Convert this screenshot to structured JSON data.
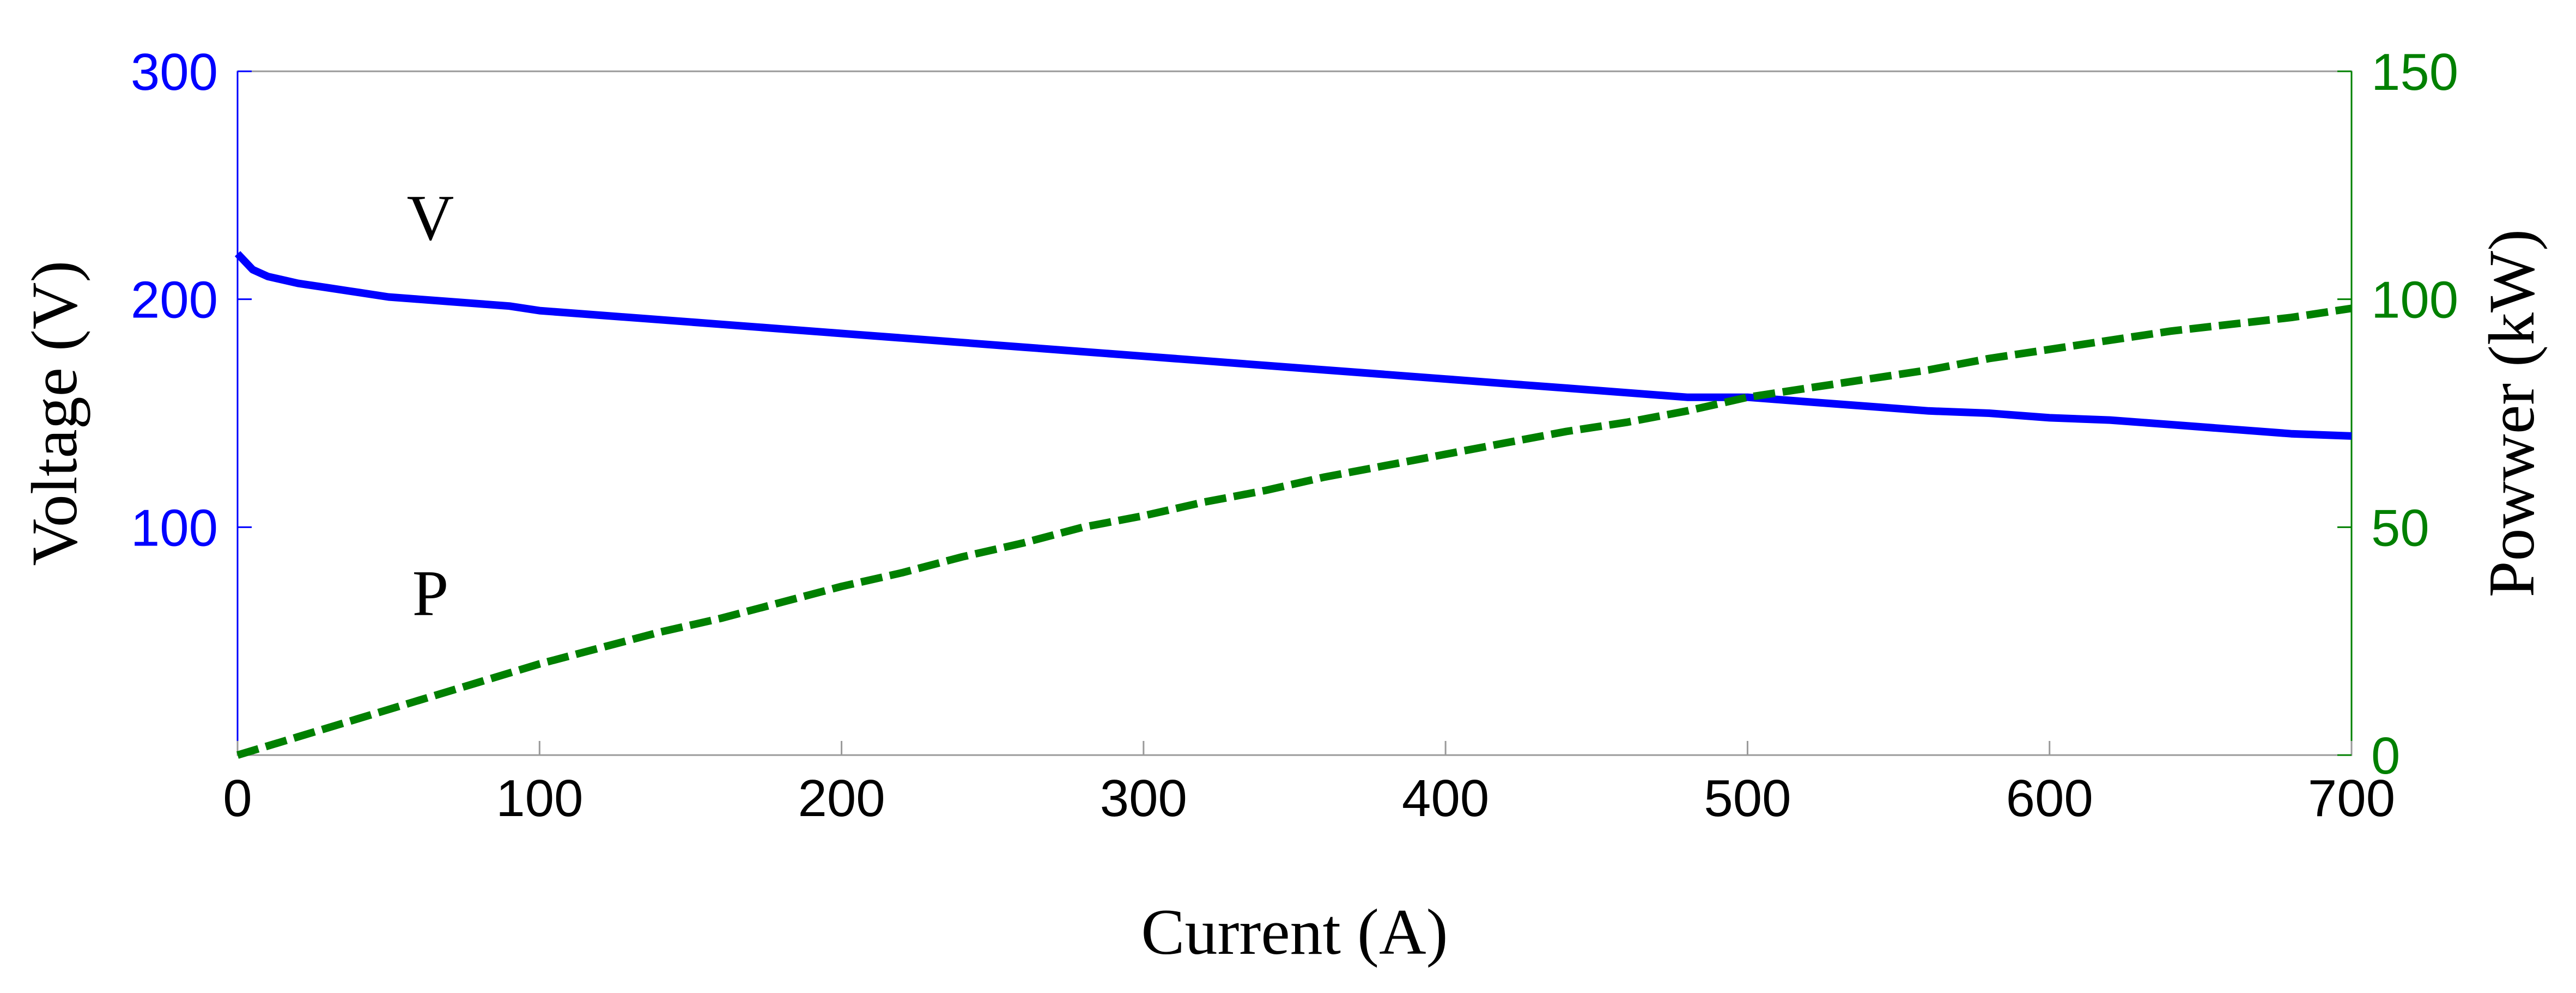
{
  "chart_data": {
    "type": "line",
    "xlabel": "Current (A)",
    "ylabel_left": "Voltage (V)",
    "ylabel_right": "Powwer (kW)",
    "xlim": [
      0,
      700
    ],
    "ylim_left": [
      0,
      300
    ],
    "ylim_right": [
      0,
      150
    ],
    "x_ticks": [
      "0",
      "100",
      "200",
      "300",
      "400",
      "500",
      "600",
      "700"
    ],
    "y_left_ticks": [
      "100",
      "200",
      "300"
    ],
    "y_right_ticks": [
      "0",
      "50",
      "100",
      "150"
    ],
    "grid": false,
    "colors": {
      "voltage": "#0000ff",
      "power": "#008000",
      "frame": "#9a9a9a"
    },
    "annotations": [
      {
        "text": "V",
        "series": "voltage"
      },
      {
        "text": "P",
        "series": "power"
      }
    ],
    "series": [
      {
        "axis": "left",
        "style": "solid",
        "x": [
          0,
          5,
          10,
          20,
          30,
          40,
          50,
          60,
          70,
          80,
          90,
          100,
          120,
          140,
          160,
          180,
          200,
          220,
          240,
          260,
          280,
          300,
          320,
          340,
          360,
          380,
          400,
          420,
          440,
          460,
          480,
          500,
          520,
          540,
          560,
          580,
          600,
          620,
          640,
          660,
          680,
          700
        ],
        "values": [
          220,
          213,
          210,
          207,
          205,
          203,
          201,
          200,
          199,
          198,
          197,
          195,
          193,
          191,
          189,
          187,
          185,
          183,
          181,
          179,
          177,
          175,
          173,
          171,
          169,
          167,
          165,
          163,
          161,
          159,
          157,
          157,
          155,
          153,
          151,
          150,
          148,
          147,
          145,
          143,
          141,
          140
        ]
      },
      {
        "axis": "right",
        "style": "dashed",
        "x": [
          0,
          20,
          40,
          60,
          80,
          100,
          120,
          140,
          160,
          180,
          200,
          220,
          240,
          260,
          280,
          300,
          320,
          340,
          360,
          380,
          400,
          420,
          440,
          460,
          480,
          500,
          520,
          540,
          560,
          580,
          600,
          620,
          640,
          660,
          680,
          700
        ],
        "values": [
          0,
          4,
          8,
          12,
          16,
          20,
          23.5,
          27,
          30,
          33.5,
          37,
          40,
          43.5,
          46.5,
          50,
          52.5,
          55.5,
          58,
          61,
          63.5,
          66,
          68.5,
          71,
          73,
          75.5,
          78.5,
          80.5,
          82.5,
          84.5,
          87,
          89,
          91,
          93,
          94.5,
          96,
          98
        ]
      }
    ]
  }
}
